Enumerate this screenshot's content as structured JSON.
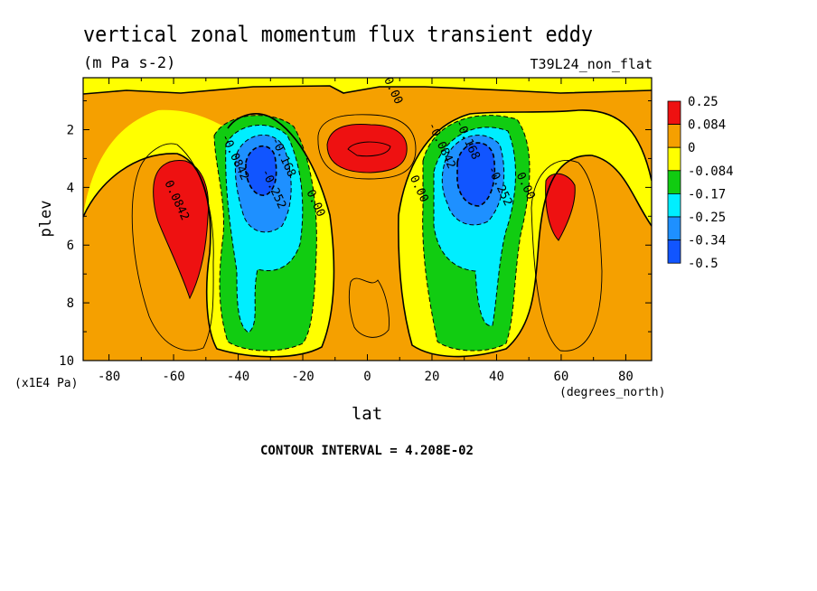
{
  "title": "vertical zonal momentum flux transient eddy",
  "units": "(m Pa s-2)",
  "dataset": "T39L24_non_flat",
  "contour_interval": "CONTOUR INTERVAL = 4.208E-02",
  "chart_data": {
    "type": "heatmap",
    "xlabel": "lat",
    "xunits": "(degrees_north)",
    "ylabel": "plev",
    "yunits": "(x1E4 Pa)",
    "xlim": [
      -88,
      88
    ],
    "ylim": [
      0.2,
      10
    ],
    "y_reversed": true,
    "x_ticks": [
      "-80",
      "-60",
      "-40",
      "-20",
      "0",
      "20",
      "40",
      "60",
      "80"
    ],
    "x_tick_values": [
      -80,
      -60,
      -40,
      -20,
      0,
      20,
      40,
      60,
      80
    ],
    "y_ticks": [
      "2",
      "4",
      "6",
      "8",
      "10"
    ],
    "y_tick_values": [
      2,
      4,
      6,
      8,
      10
    ],
    "colorbar": {
      "labels": [
        "0.25",
        "0.084",
        "0",
        "-0.084",
        "-0.17",
        "-0.25",
        "-0.34",
        "-0.5"
      ],
      "colors": [
        "#ee1111",
        "#f5a000",
        "#ffff00",
        "#11cc11",
        "#00eeff",
        "#1e90ff",
        "#1155ff"
      ]
    },
    "contour_labels": [
      {
        "text": "0.00",
        "lat": 7,
        "plev": 0.7
      },
      {
        "text": "0.0842",
        "lat": -60,
        "plev": 4.5
      },
      {
        "text": "-0.0842",
        "lat": -42,
        "plev": 3.0
      },
      {
        "text": "-0.168",
        "lat": -27,
        "plev": 3.0
      },
      {
        "text": "-0.252",
        "lat": -30,
        "plev": 4.1
      },
      {
        "text": "0.00",
        "lat": -17,
        "plev": 4.6
      },
      {
        "text": "0.00",
        "lat": 15,
        "plev": 4.1
      },
      {
        "text": "-0.0842",
        "lat": 22,
        "plev": 2.6
      },
      {
        "text": "-0.168",
        "lat": 30,
        "plev": 2.4
      },
      {
        "text": "-0.252",
        "lat": 40,
        "plev": 4.0
      },
      {
        "text": "0.00",
        "lat": 48,
        "plev": 4.0
      }
    ]
  }
}
